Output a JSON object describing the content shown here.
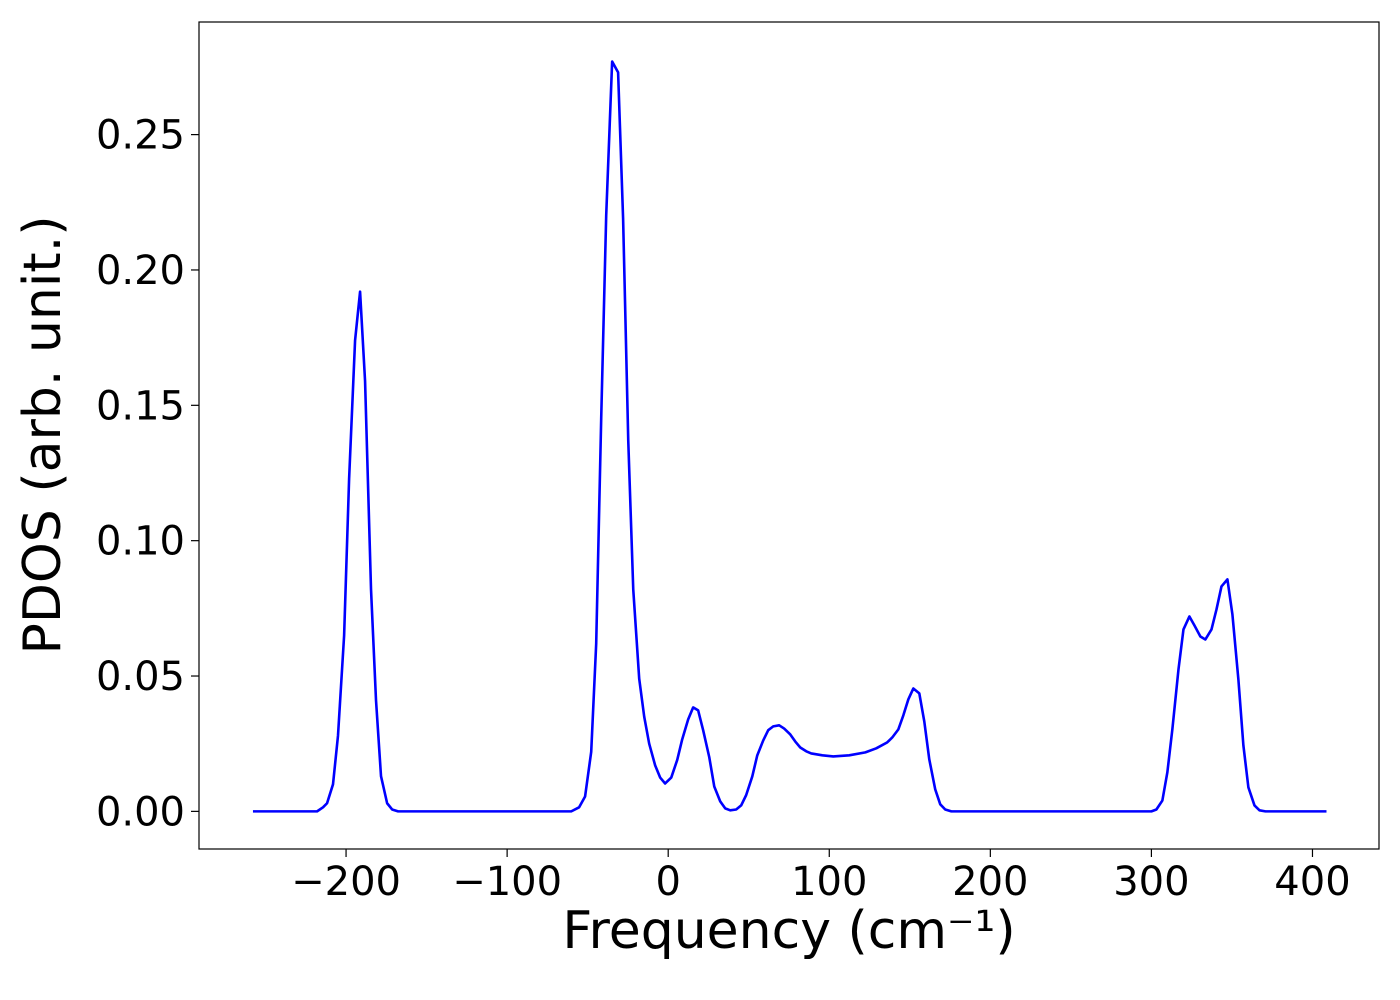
{
  "chart_data": {
    "type": "line",
    "xlabel": "Frequency (cm⁻¹)",
    "ylabel": "PDOS (arb. unit.)",
    "xlim": [
      -291.3,
      441.3
    ],
    "ylim": [
      -0.0139,
      0.2916
    ],
    "xticks": [
      {
        "value": -200,
        "label": "−200"
      },
      {
        "value": -100,
        "label": "−100"
      },
      0,
      100,
      200,
      300,
      400
    ],
    "yticks": [
      {
        "value": 0,
        "label": "0.00"
      },
      {
        "value": 0.05,
        "label": "0.05"
      },
      {
        "value": 0.1,
        "label": "0.10"
      },
      {
        "value": 0.15,
        "label": "0.15"
      },
      {
        "value": 0.2,
        "label": "0.20"
      },
      {
        "value": 0.25,
        "label": "0.25"
      }
    ],
    "grid": false,
    "series": [
      {
        "color": "#0000ff",
        "x": [
          -257.8,
          -218,
          -214.3,
          -211.8,
          -208.1,
          -205,
          -201.2,
          -198.1,
          -194.4,
          -191.3,
          -188.2,
          -184.5,
          -181.4,
          -178.3,
          -174.5,
          -171.4,
          -167.7,
          -60.2,
          -55.3,
          -51.6,
          -47.8,
          -44.7,
          -41.6,
          -38.5,
          -34.8,
          -31.1,
          -28,
          -24.8,
          -21.7,
          -18,
          -14.9,
          -11.8,
          -8.1,
          -5,
          -1.9,
          1.9,
          5.6,
          8.7,
          12.4,
          15.5,
          18.6,
          21.7,
          25.5,
          28.6,
          32.3,
          35.4,
          38.5,
          42.2,
          45.3,
          48.4,
          52.2,
          55.3,
          59,
          62.1,
          65.2,
          68.9,
          72,
          75.8,
          78.9,
          82,
          85.7,
          88.8,
          95.7,
          102.5,
          112.4,
          122.4,
          129.2,
          136,
          139.1,
          142.9,
          146,
          149.1,
          152.2,
          155.9,
          159,
          162.1,
          165.8,
          168.9,
          172,
          175.8,
          300,
          303.1,
          306.8,
          309.9,
          313,
          316.8,
          319.9,
          323.6,
          326.7,
          330.4,
          333.5,
          337.3,
          340.4,
          343.5,
          347.2,
          350.3,
          354,
          357.1,
          360.2,
          364,
          367.1,
          370.8,
          408.7
        ],
        "values": [
          0,
          0,
          0.0015,
          0.003,
          0.01,
          0.028,
          0.065,
          0.123,
          0.174,
          0.192,
          0.159,
          0.082,
          0.041,
          0.013,
          0.003,
          0.0007,
          0,
          0,
          0.0015,
          0.0055,
          0.022,
          0.062,
          0.145,
          0.22,
          0.277,
          0.273,
          0.219,
          0.137,
          0.082,
          0.049,
          0.035,
          0.025,
          0.017,
          0.0125,
          0.0103,
          0.0125,
          0.019,
          0.0266,
          0.034,
          0.0384,
          0.0373,
          0.03,
          0.02,
          0.0092,
          0.0037,
          0.0011,
          0.0004,
          0.0007,
          0.0022,
          0.006,
          0.0129,
          0.0207,
          0.0262,
          0.03,
          0.0314,
          0.0318,
          0.0306,
          0.0284,
          0.0258,
          0.0236,
          0.0222,
          0.0214,
          0.0207,
          0.0203,
          0.0207,
          0.0218,
          0.0233,
          0.0255,
          0.0273,
          0.0303,
          0.0355,
          0.0414,
          0.0454,
          0.0436,
          0.0332,
          0.0192,
          0.0081,
          0.0026,
          0.0007,
          0,
          0,
          0.0007,
          0.004,
          0.0144,
          0.0303,
          0.0524,
          0.0672,
          0.072,
          0.0687,
          0.0646,
          0.0635,
          0.0672,
          0.0746,
          0.0831,
          0.0857,
          0.0727,
          0.0487,
          0.0244,
          0.0089,
          0.0022,
          0.0004,
          0,
          0
        ]
      }
    ]
  }
}
